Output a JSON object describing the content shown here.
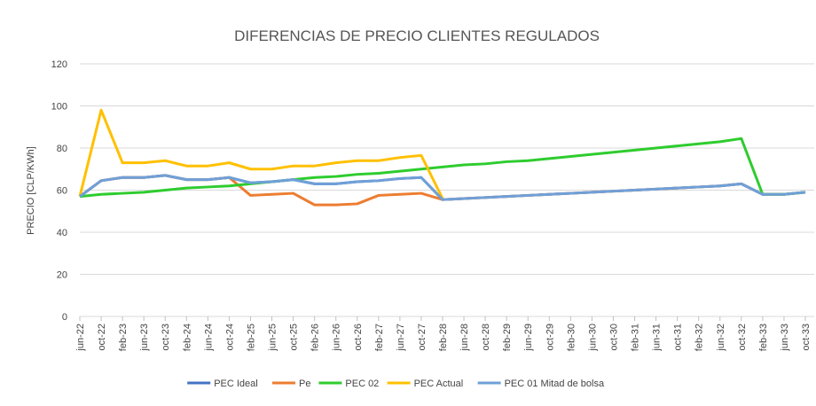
{
  "chart_data": {
    "type": "line",
    "title": "DIFERENCIAS DE PRECIO CLIENTES REGULADOS",
    "y_label": "PRECIO [CLP/KWh]",
    "categories": [
      "jun-22",
      "oct-22",
      "feb-23",
      "jun-23",
      "oct-23",
      "feb-24",
      "jun-24",
      "oct-24",
      "feb-25",
      "jun-25",
      "oct-25",
      "feb-26",
      "jun-26",
      "oct-26",
      "feb-27",
      "jun-27",
      "oct-27",
      "feb-28",
      "jun-28",
      "oct-28",
      "feb-29",
      "jun-29",
      "oct-29",
      "feb-30",
      "jun-30",
      "oct-30",
      "feb-31",
      "jun-31",
      "oct-31",
      "feb-32",
      "jun-32",
      "oct-32",
      "feb-33",
      "jun-33",
      "oct-33"
    ],
    "series": [
      {
        "name": "PEC Ideal",
        "color": "#4472c4",
        "values": [
          57,
          64.5,
          66,
          66,
          67,
          65,
          65,
          66,
          63.5,
          64,
          65,
          63,
          63,
          64,
          64.5,
          65.5,
          66,
          55.5,
          56,
          56.5,
          57,
          57.5,
          58,
          58.5,
          59,
          59.5,
          60,
          60.5,
          61,
          61.5,
          62,
          63,
          58,
          58,
          59
        ]
      },
      {
        "name": "Pe",
        "color": "#ed7d31",
        "values": [
          57,
          64.5,
          66,
          66,
          67,
          65,
          65,
          66,
          57.5,
          58,
          58.5,
          53,
          53,
          53.5,
          57.5,
          58,
          58.5,
          55.5,
          56,
          56.5,
          57,
          57.5,
          58,
          58.5,
          59,
          59.5,
          60,
          60.5,
          61,
          61.5,
          62,
          63,
          58,
          58,
          59
        ]
      },
      {
        "name": "PEC 02",
        "color": "#2ecc2e",
        "values": [
          57,
          58,
          58.5,
          59,
          60,
          61,
          61.5,
          62,
          63,
          64,
          65,
          66,
          66.5,
          67.5,
          68,
          69,
          70,
          71,
          72,
          72.5,
          73.5,
          74,
          75,
          76,
          77,
          78,
          79,
          80,
          81,
          82,
          83,
          84.5,
          58,
          58,
          59
        ]
      },
      {
        "name": "PEC Actual",
        "color": "#ffc000",
        "values": [
          57,
          98,
          73,
          73,
          74,
          71.5,
          71.5,
          73,
          70,
          70,
          71.5,
          71.5,
          73,
          74,
          74,
          75.5,
          76.5,
          56,
          null,
          null,
          null,
          null,
          null,
          null,
          null,
          null,
          null,
          null,
          null,
          null,
          null,
          null,
          null,
          null,
          null
        ]
      },
      {
        "name": "PEC 01 Mitad de bolsa",
        "color": "#6fa0d8",
        "values": [
          57,
          64.5,
          66,
          66,
          67,
          65,
          65,
          66,
          63.5,
          64,
          65,
          63,
          63,
          64,
          64.5,
          65.5,
          66,
          55.5,
          56,
          56.5,
          57,
          57.5,
          58,
          58.5,
          59,
          59.5,
          60,
          60.5,
          61,
          61.5,
          62,
          63,
          58,
          58,
          59
        ]
      }
    ],
    "ylim": [
      0,
      120
    ],
    "yticks": [
      0,
      20,
      40,
      60,
      80,
      100,
      120
    ],
    "grid": true,
    "legend": "bottom"
  }
}
